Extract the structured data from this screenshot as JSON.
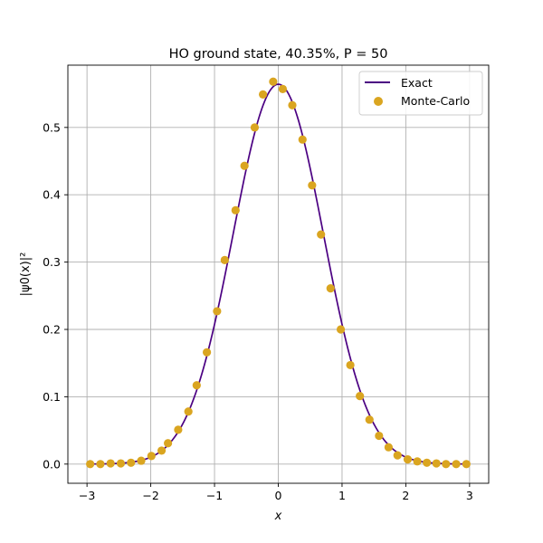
{
  "chart_data": {
    "type": "scatter",
    "title": "HO ground state, 40.35%, P = 50",
    "xlabel": "x",
    "ylabel": "|ψ0(x)|²",
    "xlim": [
      -3.3,
      3.3
    ],
    "ylim": [
      -0.0285,
      0.5925
    ],
    "xticks": [
      -3,
      -2,
      -1,
      0,
      1,
      2,
      3
    ],
    "xtick_labels": [
      "−3",
      "−2",
      "−1",
      "0",
      "1",
      "2",
      "3"
    ],
    "yticks": [
      0.0,
      0.1,
      0.2,
      0.3,
      0.4,
      0.5
    ],
    "ytick_labels": [
      "0.0",
      "0.1",
      "0.2",
      "0.3",
      "0.4",
      "0.5"
    ],
    "grid": true,
    "legend_position": "top-right",
    "series": [
      {
        "name": "Exact",
        "kind": "line",
        "color": "#4b0082",
        "function": "exp(-x^2)/sqrt(pi)",
        "x_range": [
          -3,
          3
        ]
      },
      {
        "name": "Monte-Carlo",
        "kind": "scatter",
        "color": "#daa520",
        "x": [
          -2.95,
          -2.79,
          -2.63,
          -2.47,
          -2.31,
          -2.15,
          -1.99,
          -1.83,
          -1.73,
          -1.57,
          -1.41,
          -1.28,
          -1.12,
          -0.96,
          -0.84,
          -0.67,
          -0.53,
          -0.37,
          -0.24,
          -0.08,
          0.07,
          0.22,
          0.38,
          0.53,
          0.67,
          0.82,
          0.98,
          1.13,
          1.28,
          1.43,
          1.58,
          1.73,
          1.87,
          2.03,
          2.18,
          2.33,
          2.48,
          2.63,
          2.79,
          2.95
        ],
        "y": [
          0.0,
          0.0,
          0.001,
          0.001,
          0.002,
          0.005,
          0.012,
          0.02,
          0.031,
          0.051,
          0.078,
          0.117,
          0.166,
          0.227,
          0.303,
          0.377,
          0.443,
          0.5,
          0.549,
          0.568,
          0.557,
          0.533,
          0.482,
          0.414,
          0.341,
          0.261,
          0.2,
          0.147,
          0.101,
          0.066,
          0.042,
          0.025,
          0.013,
          0.007,
          0.004,
          0.002,
          0.001,
          0.0,
          0.0,
          0.0
        ]
      }
    ]
  }
}
